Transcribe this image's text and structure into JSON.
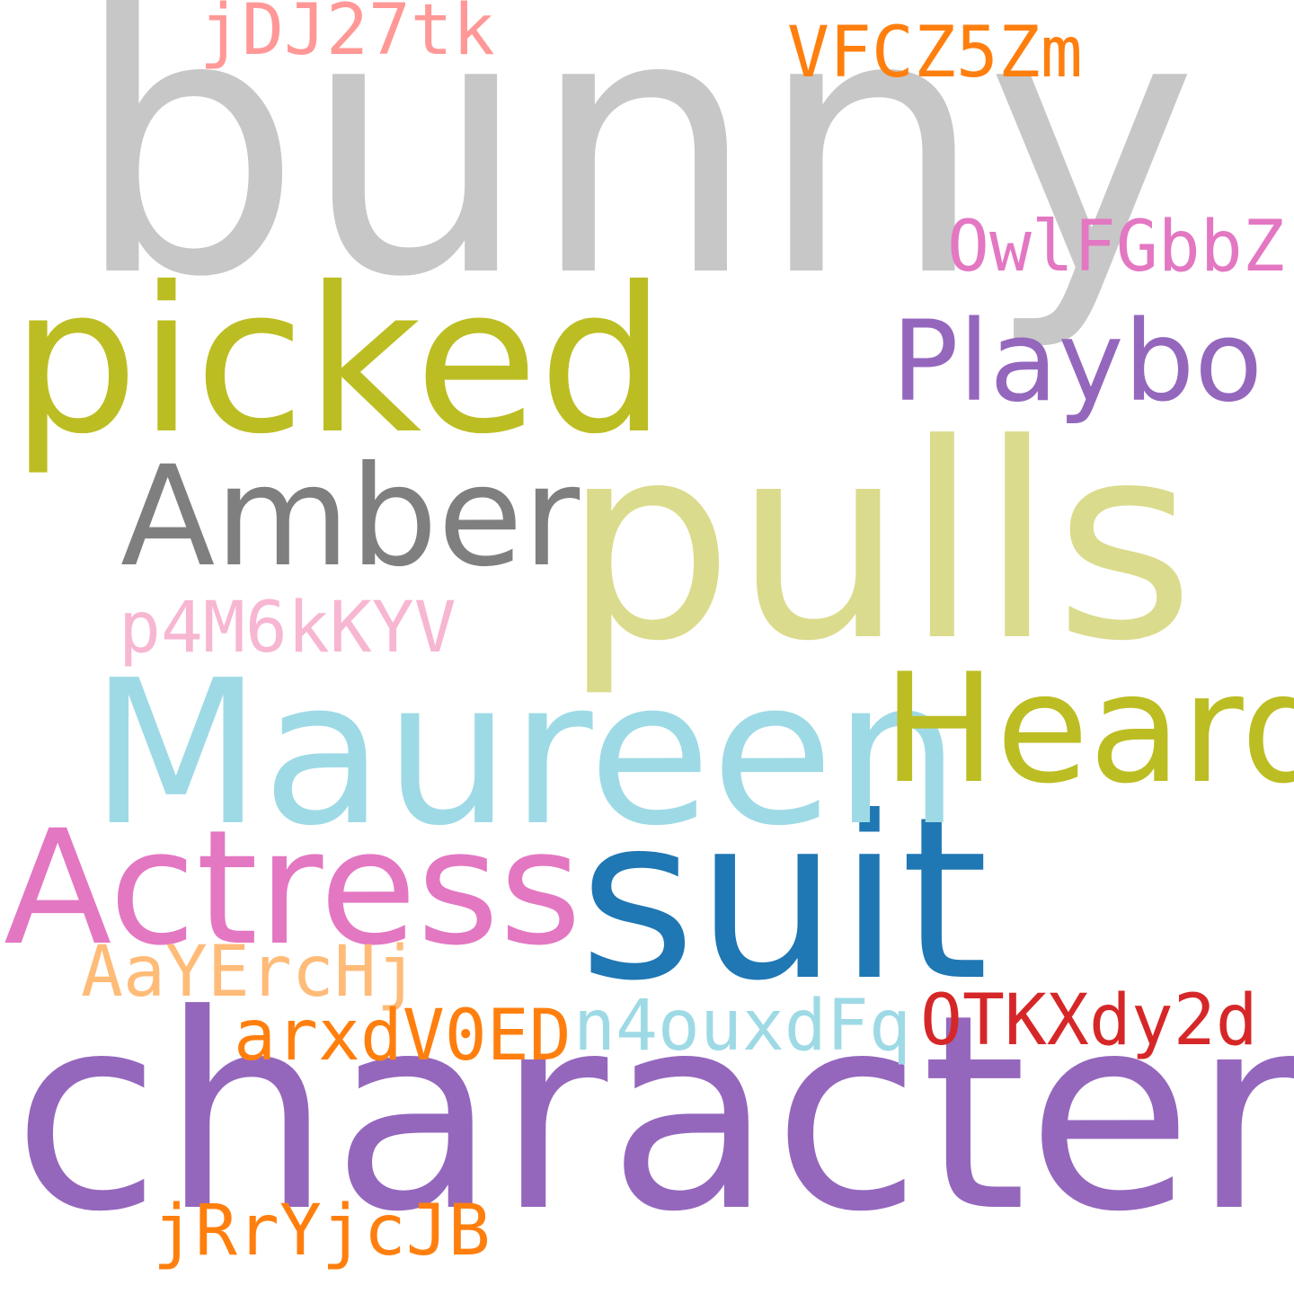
{
  "cloud": {
    "words": {
      "bunny": {
        "text": "bunny",
        "color": "#c7c7c7"
      },
      "character": {
        "text": "character",
        "color": "#9467bd"
      },
      "pulls": {
        "text": "pulls",
        "color": "#dbdb8d"
      },
      "suit": {
        "text": "suit",
        "color": "#1f77b4"
      },
      "maureen": {
        "text": "Maureen",
        "color": "#9edae5"
      },
      "picked": {
        "text": "picked",
        "color": "#bcbd22"
      },
      "actress": {
        "text": "Actress",
        "color": "#e377c2"
      },
      "heard": {
        "text": "Heard",
        "color": "#bcbd22"
      },
      "amber": {
        "text": "Amber",
        "color": "#7f7f7f"
      },
      "playbo": {
        "text": "Playbo",
        "color": "#9467bd"
      },
      "owlfgbbz": {
        "text": "OwlFGbbZ",
        "color": "#e377c2"
      },
      "jdj27tk": {
        "text": "jDJ27tk",
        "color": "#ff9896"
      },
      "vfcz5zm": {
        "text": "VFCZ5Zm",
        "color": "#ff7f0e"
      },
      "p4m6kkyv": {
        "text": "p4M6kKYV",
        "color": "#f7b6d2"
      },
      "aayerchj": {
        "text": "AaYErcHj",
        "color": "#ffbb78"
      },
      "arxdv0ed": {
        "text": "arxdV0ED",
        "color": "#ff7f0e"
      },
      "n4ouxdfq": {
        "text": "n4ouxdFq",
        "color": "#9edae5"
      },
      "otkxdy2d": {
        "text": "OTKXdy2d",
        "color": "#d62728"
      },
      "jrryjcjb": {
        "text": "jRrYjcJB",
        "color": "#ff7f0e"
      }
    }
  }
}
